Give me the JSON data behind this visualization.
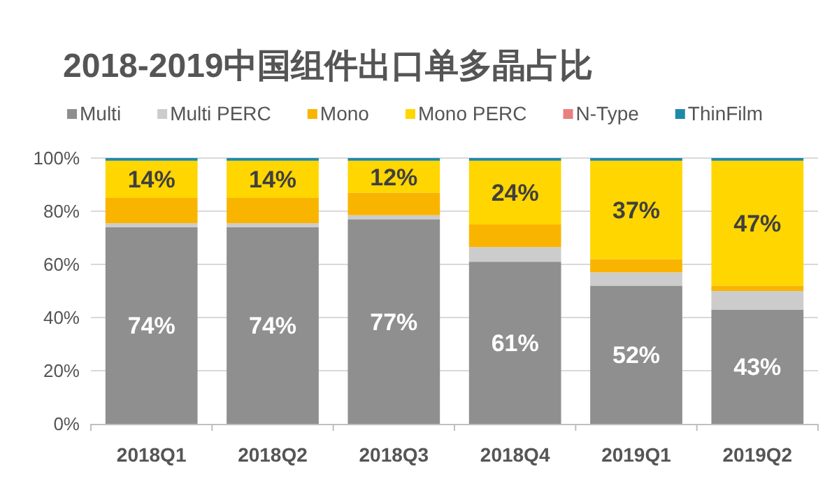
{
  "chart_data": {
    "type": "bar",
    "stacked": true,
    "title": "2018-2019中国组件出口单多晶占比",
    "categories": [
      "2018Q1",
      "2018Q2",
      "2018Q3",
      "2018Q4",
      "2019Q1",
      "2019Q2"
    ],
    "series": [
      {
        "name": "Multi",
        "color": "#8f8f8f",
        "values": [
          74,
          74,
          77,
          61,
          52,
          43
        ],
        "value_labels": [
          "74%",
          "74%",
          "77%",
          "61%",
          "52%",
          "43%"
        ]
      },
      {
        "name": "Multi PERC",
        "color": "#cccccc",
        "values": [
          1.5,
          1.5,
          1.5,
          5.5,
          5,
          7
        ]
      },
      {
        "name": "Mono",
        "color": "#f9b400",
        "values": [
          9.5,
          9.5,
          8.5,
          8.5,
          5,
          2
        ]
      },
      {
        "name": "Mono PERC",
        "color": "#ffd600",
        "values": [
          14,
          14,
          12,
          24,
          37,
          47
        ],
        "value_labels": [
          "14%",
          "14%",
          "12%",
          "24%",
          "37%",
          "47%"
        ]
      },
      {
        "name": "N-Type",
        "color": "#e88080",
        "values": [
          null,
          null,
          null,
          null,
          null,
          null
        ]
      },
      {
        "name": "ThinFilm",
        "color": "#1f8aa8",
        "values": [
          1,
          1,
          1,
          1,
          1,
          1
        ]
      }
    ],
    "ylim": [
      0,
      100
    ],
    "yticks": [
      {
        "value": 0,
        "label": "0%"
      },
      {
        "value": 20,
        "label": "20%"
      },
      {
        "value": 40,
        "label": "40%"
      },
      {
        "value": 60,
        "label": "60%"
      },
      {
        "value": 80,
        "label": "80%"
      },
      {
        "value": 100,
        "label": "100%"
      }
    ],
    "grid": "y",
    "legend": "top"
  }
}
